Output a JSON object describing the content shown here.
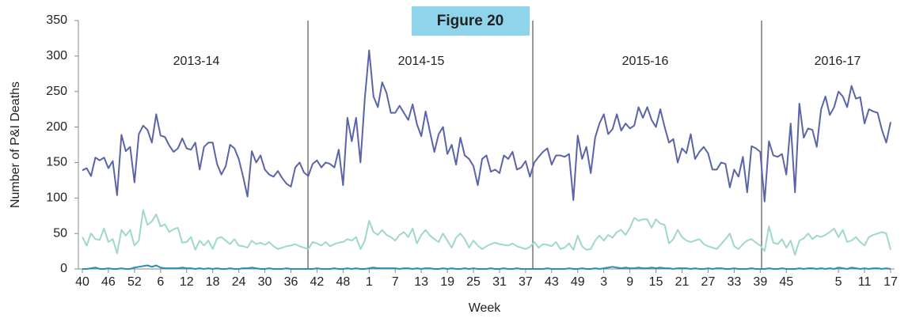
{
  "chart_data": {
    "type": "line",
    "figure_label": "Figure 20",
    "ylabel": "Number of P&I Deaths",
    "xlabel": "Week",
    "season_labels": [
      "2013-14",
      "2014-15",
      "2015-16",
      "2016-17"
    ],
    "categories": [
      "40",
      null,
      null,
      null,
      null,
      null,
      "46",
      null,
      null,
      null,
      null,
      null,
      "52",
      null,
      null,
      null,
      null,
      null,
      "6",
      null,
      null,
      null,
      null,
      null,
      "12",
      null,
      null,
      null,
      null,
      null,
      "18",
      null,
      null,
      null,
      null,
      null,
      "24",
      null,
      null,
      null,
      null,
      null,
      "30",
      null,
      null,
      null,
      null,
      null,
      "36",
      null,
      null,
      null,
      null,
      null,
      "42",
      null,
      null,
      null,
      null,
      null,
      "48",
      null,
      null,
      null,
      null,
      null,
      "1",
      null,
      null,
      null,
      null,
      null,
      "7",
      null,
      null,
      null,
      null,
      null,
      "13",
      null,
      null,
      null,
      null,
      null,
      "19",
      null,
      null,
      null,
      null,
      null,
      "25",
      null,
      null,
      null,
      null,
      null,
      "31",
      null,
      null,
      null,
      null,
      null,
      "37",
      null,
      null,
      null,
      null,
      null,
      "43",
      null,
      null,
      null,
      null,
      null,
      "49",
      null,
      null,
      null,
      null,
      null,
      "3",
      null,
      null,
      null,
      null,
      null,
      "9",
      null,
      null,
      null,
      null,
      null,
      "15",
      null,
      null,
      null,
      null,
      null,
      "21",
      null,
      null,
      null,
      null,
      null,
      "27",
      null,
      null,
      null,
      null,
      null,
      "33",
      null,
      null,
      null,
      null,
      null,
      "39",
      null,
      null,
      null,
      null,
      null,
      "45",
      null,
      null,
      null,
      null,
      null,
      null,
      null,
      null,
      null,
      null,
      null,
      "5",
      null,
      null,
      null,
      null,
      null,
      "11",
      null,
      null,
      null,
      null,
      null,
      "17"
    ],
    "series": [
      {
        "color": "#5a64a8",
        "values": [
          139,
          142,
          131,
          157,
          153,
          157,
          142,
          152,
          104,
          189,
          166,
          172,
          122,
          190,
          202,
          196,
          178,
          218,
          188,
          186,
          174,
          165,
          170,
          184,
          170,
          168,
          178,
          140,
          172,
          178,
          178,
          148,
          133,
          145,
          175,
          170,
          155,
          130,
          102,
          166,
          150,
          160,
          140,
          133,
          130,
          138,
          128,
          120,
          116,
          143,
          150,
          136,
          131,
          148,
          153,
          143,
          150,
          148,
          143,
          168,
          118,
          213,
          180,
          213,
          150,
          240,
          308,
          243,
          228,
          263,
          248,
          220,
          220,
          230,
          220,
          210,
          232,
          204,
          187,
          222,
          193,
          165,
          190,
          200,
          162,
          175,
          147,
          185,
          160,
          155,
          145,
          118,
          155,
          160,
          137,
          140,
          135,
          160,
          155,
          165,
          140,
          143,
          152,
          130,
          150,
          158,
          165,
          170,
          147,
          160,
          160,
          158,
          162,
          97,
          188,
          155,
          172,
          135,
          185,
          205,
          218,
          190,
          197,
          218,
          195,
          205,
          198,
          202,
          228,
          213,
          228,
          210,
          200,
          225,
          200,
          178,
          183,
          150,
          170,
          163,
          190,
          155,
          165,
          172,
          163,
          140,
          140,
          150,
          148,
          115,
          140,
          130,
          158,
          108,
          173,
          170,
          165,
          95,
          180,
          160,
          158,
          162,
          133,
          205,
          108,
          233,
          185,
          198,
          196,
          172,
          225,
          243,
          217,
          228,
          250,
          243,
          228,
          258,
          240,
          242,
          205,
          225,
          222,
          220,
          196,
          178,
          207
        ]
      },
      {
        "color": "#9ed9c5",
        "values": [
          45,
          33,
          50,
          42,
          41,
          57,
          38,
          42,
          22,
          55,
          47,
          55,
          33,
          40,
          83,
          62,
          67,
          77,
          60,
          63,
          52,
          56,
          58,
          37,
          38,
          45,
          27,
          40,
          33,
          40,
          28,
          43,
          45,
          40,
          35,
          42,
          33,
          32,
          30,
          40,
          35,
          37,
          34,
          38,
          32,
          28,
          30,
          32,
          33,
          35,
          32,
          30,
          28,
          38,
          36,
          33,
          38,
          32,
          35,
          37,
          38,
          42,
          40,
          45,
          28,
          40,
          68,
          52,
          48,
          55,
          48,
          45,
          40,
          48,
          52,
          45,
          57,
          36,
          48,
          55,
          47,
          42,
          38,
          50,
          40,
          30,
          44,
          50,
          42,
          30,
          40,
          33,
          28,
          32,
          35,
          37,
          35,
          34,
          33,
          36,
          32,
          30,
          28,
          31,
          38,
          30,
          35,
          34,
          32,
          38,
          28,
          30,
          36,
          27,
          47,
          32,
          27,
          28,
          40,
          47,
          40,
          48,
          44,
          52,
          55,
          48,
          58,
          72,
          68,
          70,
          70,
          58,
          70,
          64,
          62,
          36,
          42,
          55,
          45,
          40,
          38,
          40,
          42,
          35,
          32,
          30,
          28,
          35,
          42,
          50,
          32,
          28,
          35,
          40,
          42,
          37,
          33,
          25,
          60,
          37,
          35,
          42,
          30,
          40,
          20,
          40,
          43,
          50,
          42,
          47,
          45,
          48,
          52,
          57,
          45,
          55,
          38,
          40,
          45,
          38,
          33,
          45,
          48,
          50,
          52,
          50,
          27
        ]
      },
      {
        "color": "#2b8cb5",
        "values": [
          0,
          0,
          1,
          2,
          0,
          0,
          1,
          0,
          0,
          1,
          0,
          0,
          2,
          3,
          4,
          5,
          3,
          5,
          2,
          1,
          1,
          1,
          1,
          2,
          1,
          1,
          0,
          1,
          0,
          1,
          0,
          1,
          0,
          0,
          1,
          0,
          0,
          1,
          1,
          2,
          1,
          0,
          0,
          1,
          0,
          0,
          0,
          1,
          0,
          0,
          0,
          0,
          0,
          0,
          1,
          0,
          0,
          0,
          1,
          0,
          0,
          1,
          0,
          1,
          0,
          0,
          1,
          2,
          1,
          1,
          1,
          1,
          1,
          0,
          1,
          1,
          0,
          1,
          0,
          1,
          1,
          0,
          0,
          1,
          0,
          1,
          0,
          0,
          1,
          0,
          1,
          0,
          0,
          0,
          1,
          0,
          0,
          1,
          0,
          0,
          1,
          0,
          0,
          0,
          0,
          0,
          0,
          1,
          0,
          0,
          0,
          0,
          1,
          0,
          0,
          1,
          0,
          0,
          1,
          0,
          1,
          2,
          3,
          2,
          1,
          2,
          1,
          1,
          2,
          1,
          1,
          2,
          1,
          2,
          1,
          1,
          0,
          1,
          1,
          1,
          0,
          1,
          0,
          0,
          1,
          0,
          1,
          1,
          0,
          0,
          1,
          0,
          0,
          0,
          1,
          0,
          0,
          0,
          1,
          0,
          0,
          1,
          0,
          0,
          0,
          1,
          0,
          1,
          1,
          0,
          1,
          0,
          1,
          0,
          2,
          1,
          0,
          2,
          1,
          0,
          1,
          0,
          1,
          1,
          0,
          1,
          0
        ]
      }
    ],
    "ylim": [
      0,
      350
    ],
    "yticks": [
      0,
      50,
      100,
      150,
      200,
      250,
      300,
      350
    ]
  }
}
